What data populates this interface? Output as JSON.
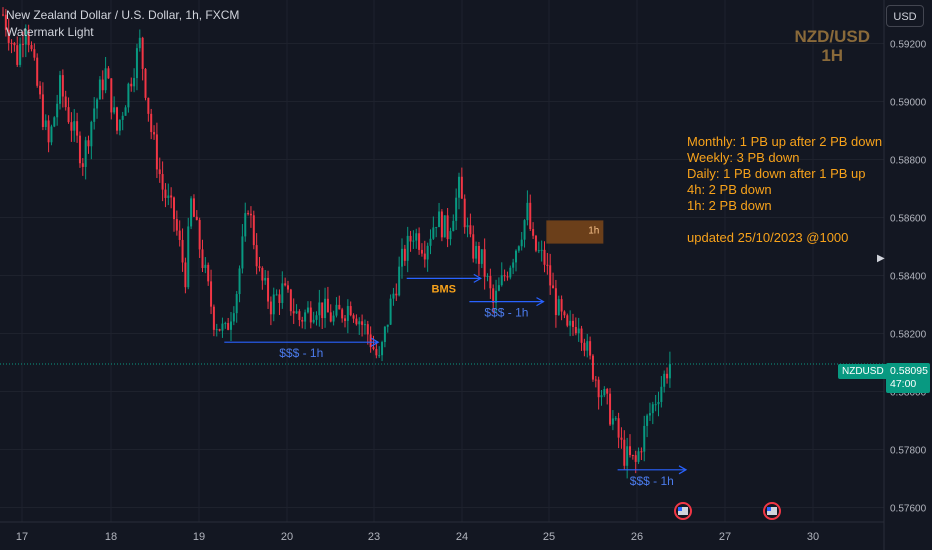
{
  "header": {
    "title": "New Zealand Dollar / U.S. Dollar, 1h, FXCM",
    "indicator": "Watermark Light"
  },
  "currency_button": "USD",
  "watermark": {
    "line1": "NZD/USD",
    "line2": "1H"
  },
  "notes": [
    "Monthly: 1 PB up after 2 PB down",
    "Weekly: 3 PB down",
    "Daily: 1 PB down after 1 PB up",
    "4h: 2 PB down",
    "1h: 2 PB down",
    "",
    "updated 25/10/2023 @1000"
  ],
  "price_tag": {
    "symbol": "NZDUSD",
    "price": "0.58095",
    "countdown": "47:00"
  },
  "colors": {
    "up": "#089981",
    "down": "#f23645",
    "background": "#131722",
    "grid": "#1e222d",
    "annotation": "#2962ff",
    "note": "#f7a21b",
    "zone": "#8a4d18"
  },
  "chart_data": {
    "type": "candlestick",
    "y_axis": {
      "ticks": [
        "0.59200",
        "0.59000",
        "0.58800",
        "0.58600",
        "0.58400",
        "0.58200",
        "0.58000",
        "0.57800",
        "0.57600"
      ],
      "range": [
        0.5755,
        0.5935
      ]
    },
    "x_axis": {
      "ticks": [
        "17",
        "18",
        "19",
        "20",
        "23",
        "24",
        "25",
        "26",
        "27",
        "30"
      ]
    },
    "current_price": 0.58095,
    "ohlc_path": [
      [
        0,
        0.593
      ],
      [
        5,
        0.5915
      ],
      [
        8,
        0.5928
      ],
      [
        12,
        0.5905
      ],
      [
        16,
        0.5885
      ],
      [
        20,
        0.5905
      ],
      [
        24,
        0.5892
      ],
      [
        28,
        0.588
      ],
      [
        32,
        0.5898
      ],
      [
        36,
        0.591
      ],
      [
        40,
        0.589
      ],
      [
        44,
        0.5905
      ],
      [
        48,
        0.592
      ],
      [
        52,
        0.589
      ],
      [
        56,
        0.587
      ],
      [
        60,
        0.586
      ],
      [
        64,
        0.584
      ],
      [
        66,
        0.5865
      ],
      [
        70,
        0.5845
      ],
      [
        74,
        0.5825
      ],
      [
        78,
        0.582
      ],
      [
        82,
        0.5835
      ],
      [
        86,
        0.5865
      ],
      [
        90,
        0.584
      ],
      [
        94,
        0.583
      ],
      [
        98,
        0.5835
      ],
      [
        104,
        0.5825
      ],
      [
        110,
        0.583
      ],
      [
        116,
        0.5825
      ],
      [
        122,
        0.583
      ],
      [
        128,
        0.582
      ],
      [
        132,
        0.581
      ],
      [
        136,
        0.583
      ],
      [
        140,
        0.5845
      ],
      [
        144,
        0.5855
      ],
      [
        148,
        0.585
      ],
      [
        152,
        0.586
      ],
      [
        156,
        0.5855
      ],
      [
        160,
        0.587
      ],
      [
        164,
        0.585
      ],
      [
        168,
        0.5845
      ],
      [
        172,
        0.583
      ],
      [
        176,
        0.584
      ],
      [
        180,
        0.585
      ],
      [
        184,
        0.5862
      ],
      [
        186,
        0.585
      ],
      [
        190,
        0.5845
      ],
      [
        194,
        0.583
      ],
      [
        198,
        0.582
      ],
      [
        202,
        0.5825
      ],
      [
        206,
        0.581
      ],
      [
        210,
        0.58
      ],
      [
        214,
        0.579
      ],
      [
        218,
        0.5778
      ],
      [
        222,
        0.5775
      ],
      [
        226,
        0.579
      ],
      [
        230,
        0.58
      ],
      [
        234,
        0.581
      ]
    ],
    "annotations": [
      {
        "type": "liquidity",
        "label": "$$$ - 1h",
        "price": 0.5817,
        "from_bar": 78,
        "to_bar": 132
      },
      {
        "type": "liquidity",
        "label": "$$$ - 1h",
        "price": 0.5831,
        "from_bar": 164,
        "to_bar": 190
      },
      {
        "type": "bms",
        "label": "BMS",
        "price": 0.5839,
        "from_bar": 142,
        "to_bar": 168
      },
      {
        "type": "liquidity",
        "label": "$$$ - 1h",
        "price": 0.5773,
        "from_bar": 216,
        "to_bar": 240
      },
      {
        "type": "zone",
        "label": "1h",
        "price_top": 0.5859,
        "price_bottom": 0.5851,
        "from_bar": 191,
        "to_bar": 211
      }
    ]
  }
}
